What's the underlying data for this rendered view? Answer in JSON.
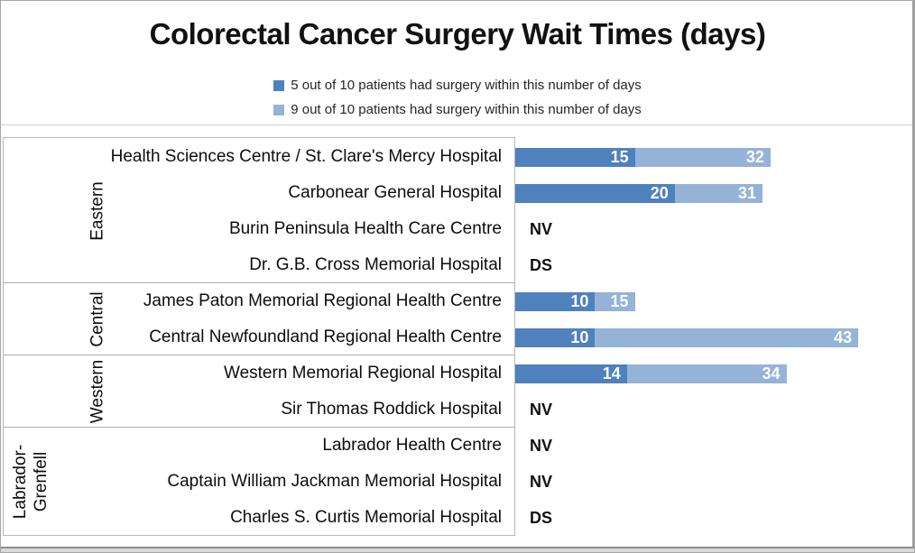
{
  "title": "Colorectal Cancer Surgery Wait Times (days)",
  "colors": {
    "bar_dark": "#4F81BD",
    "bar_light": "#95B3D7",
    "box_border": "#b7b7b7",
    "frame_border": "#a6a6a6"
  },
  "chart_data": {
    "type": "bar",
    "orientation": "horizontal",
    "title": "Colorectal Cancer Surgery Wait Times (days)",
    "xlim": [
      0,
      45
    ],
    "grid": false,
    "legend_position": "top-center",
    "series": [
      {
        "name": "5 out of 10 patients had surgery within this number of days",
        "color": "#4F81BD"
      },
      {
        "name": "9 out of 10 patients had surgery within this number of days",
        "color": "#95B3D7"
      }
    ],
    "groups": [
      {
        "region_lines": [
          "Eastern"
        ],
        "rows": [
          {
            "hospital": "Health Sciences Centre / St. Clare's Mercy Hospital",
            "p50": 15,
            "p90": 32
          },
          {
            "hospital": "Carbonear General Hospital",
            "p50": 20,
            "p90": 31
          },
          {
            "hospital": "Burin Peninsula Health Care Centre",
            "note": "NV"
          },
          {
            "hospital": "Dr. G.B. Cross Memorial Hospital",
            "note": "DS"
          }
        ]
      },
      {
        "region_lines": [
          "Central"
        ],
        "rows": [
          {
            "hospital": "James Paton Memorial Regional Health Centre",
            "p50": 10,
            "p90": 15
          },
          {
            "hospital": "Central Newfoundland Regional Health Centre",
            "p50": 10,
            "p90": 43
          }
        ]
      },
      {
        "region_lines": [
          "Western"
        ],
        "rows": [
          {
            "hospital": "Western Memorial Regional Hospital",
            "p50": 14,
            "p90": 34
          },
          {
            "hospital": "Sir Thomas Roddick Hospital",
            "note": "NV"
          }
        ]
      },
      {
        "region_lines": [
          "Labrador-",
          "Grenfell"
        ],
        "rows": [
          {
            "hospital": "Labrador Health Centre",
            "note": "NV"
          },
          {
            "hospital": "Captain William Jackman Memorial Hospital",
            "note": "NV"
          },
          {
            "hospital": "Charles S. Curtis Memorial Hospital",
            "note": "DS"
          }
        ]
      }
    ]
  }
}
